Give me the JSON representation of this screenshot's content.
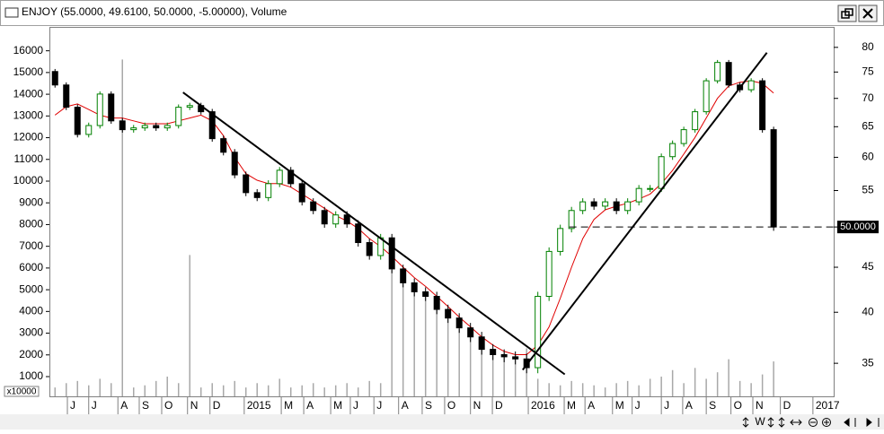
{
  "chart_data": {
    "type": "candlestick",
    "title": "ENJOY (55.0000, 49.6100, 50.0000, -5.00000), Volume",
    "x": [
      1,
      3,
      5,
      7,
      9,
      11,
      13,
      15,
      17,
      19,
      21,
      23,
      25,
      27,
      29,
      31,
      33,
      35,
      37,
      39,
      41,
      43,
      45,
      47,
      49,
      51,
      53,
      55,
      57,
      59,
      61,
      63,
      65,
      67,
      69,
      71,
      73,
      75,
      77,
      79,
      81,
      83,
      85,
      87,
      89,
      91,
      93,
      95,
      97,
      99,
      101,
      103,
      105,
      107,
      109,
      111,
      113,
      115,
      117,
      119,
      121,
      123,
      125,
      127,
      129
    ],
    "open": [
      75.1,
      72.5,
      68.4,
      63.7,
      65.2,
      70.8,
      66.0,
      64.5,
      64.8,
      65.2,
      64.8,
      65.2,
      68.4,
      68.7,
      67.6,
      63.0,
      60.8,
      57.3,
      54.7,
      54.0,
      56.0,
      58.0,
      56.0,
      53.4,
      52.2,
      50.4,
      51.6,
      50.4,
      48.0,
      46.4,
      48.6,
      44.8,
      43.2,
      42.2,
      41.7,
      40.3,
      39.4,
      38.4,
      37.5,
      36.3,
      35.8,
      35.6,
      35.4,
      34.6,
      41.7,
      46.9,
      49.8,
      52.2,
      53.4,
      52.8,
      53.4,
      52.2,
      53.4,
      55.3,
      55.3,
      60.1,
      62.2,
      64.5,
      67.6,
      73.3,
      76.9,
      72.5,
      71.6,
      73.3,
      64.5
    ],
    "high": [
      75.6,
      73.0,
      68.9,
      65.7,
      71.3,
      71.3,
      66.5,
      65.3,
      65.7,
      65.7,
      65.7,
      68.9,
      69.2,
      69.2,
      68.1,
      63.5,
      61.3,
      57.8,
      55.2,
      56.5,
      58.5,
      58.5,
      56.5,
      53.9,
      52.7,
      52.1,
      52.1,
      50.9,
      48.5,
      49.1,
      49.1,
      45.3,
      43.7,
      42.7,
      42.2,
      40.8,
      39.9,
      38.9,
      38.0,
      36.8,
      36.3,
      36.1,
      35.9,
      42.2,
      47.4,
      50.3,
      52.7,
      53.9,
      53.9,
      53.9,
      53.9,
      53.9,
      55.8,
      55.8,
      60.6,
      62.7,
      65.0,
      68.1,
      73.8,
      77.4,
      77.4,
      73.0,
      73.8,
      73.8,
      65.0
    ],
    "low": [
      72.0,
      67.9,
      63.2,
      63.2,
      64.7,
      65.5,
      64.0,
      64.0,
      64.3,
      64.3,
      64.3,
      64.7,
      67.9,
      67.1,
      62.5,
      60.3,
      56.8,
      54.2,
      53.5,
      53.5,
      55.5,
      55.5,
      52.9,
      51.7,
      49.9,
      49.9,
      49.9,
      47.5,
      45.9,
      45.9,
      44.3,
      42.7,
      41.7,
      41.2,
      39.8,
      38.9,
      37.9,
      37.0,
      35.8,
      35.3,
      35.1,
      34.9,
      34.1,
      34.1,
      41.2,
      46.4,
      49.3,
      51.7,
      52.3,
      52.3,
      51.7,
      51.7,
      52.9,
      54.8,
      54.8,
      59.6,
      61.7,
      64.0,
      67.1,
      72.8,
      72.0,
      71.1,
      71.1,
      64.0,
      49.5
    ],
    "close": [
      72.5,
      68.4,
      63.7,
      65.2,
      70.8,
      66.0,
      64.5,
      64.8,
      65.2,
      64.8,
      65.2,
      68.4,
      68.7,
      67.6,
      63.0,
      60.8,
      57.3,
      54.7,
      54.0,
      56.0,
      58.0,
      56.0,
      53.4,
      52.2,
      50.4,
      51.6,
      50.4,
      48.0,
      46.4,
      48.6,
      44.8,
      43.2,
      42.2,
      41.7,
      40.3,
      39.4,
      38.4,
      37.5,
      36.3,
      35.8,
      35.6,
      35.4,
      34.6,
      41.7,
      46.9,
      49.8,
      52.2,
      53.4,
      52.8,
      53.4,
      52.2,
      53.4,
      55.3,
      55.3,
      60.1,
      62.2,
      64.5,
      67.6,
      73.3,
      76.9,
      72.5,
      71.6,
      73.3,
      64.5,
      50.0
    ],
    "up_color": "#008000",
    "down_color": "#000000",
    "volume": [
      500,
      700,
      800,
      600,
      900,
      700,
      15600,
      500,
      600,
      800,
      1000,
      700,
      6600,
      500,
      700,
      600,
      800,
      500,
      700,
      600,
      900,
      500,
      600,
      700,
      500,
      600,
      700,
      500,
      800,
      700,
      5900,
      5800,
      5200,
      4900,
      4500,
      3800,
      3200,
      2900,
      2400,
      2200,
      2100,
      2000,
      2300,
      900,
      700,
      600,
      800,
      700,
      600,
      500,
      700,
      800,
      600,
      900,
      1000,
      1300,
      700,
      1400,
      900,
      1200,
      1800,
      800,
      700,
      1100,
      1700
    ],
    "volume_color": "#a8a8a8",
    "ma": [
      67,
      68.5,
      69,
      68,
      67,
      66.5,
      66.5,
      66,
      65.5,
      65.5,
      65.5,
      66,
      66.5,
      67,
      66,
      63.5,
      60,
      57.5,
      56.5,
      56,
      56,
      55.5,
      54.5,
      53.5,
      52.5,
      51.5,
      50.8,
      49.8,
      48.5,
      47.5,
      46.3,
      45,
      43.8,
      42.8,
      41.7,
      40.6,
      39.5,
      38.5,
      37.5,
      36.7,
      36.1,
      35.8,
      35.8,
      36.7,
      38.5,
      41.5,
      45,
      48.5,
      51,
      52.3,
      52.8,
      53.2,
      53.8,
      54.5,
      56,
      58,
      60.5,
      63.2,
      66.5,
      70,
      72.3,
      73,
      73.3,
      72.8,
      71
    ],
    "ma_color": "#e00000",
    "trendlines": [
      {
        "x": [
          23.8,
          91.8
        ],
        "y": [
          71.1,
          34.0
        ]
      },
      {
        "x": [
          84.3,
          127.8
        ],
        "y": [
          34.4,
          78.9
        ]
      }
    ],
    "last_price": {
      "value": 50,
      "label": "50.0000",
      "from_x": 92.6
    },
    "xlim": [
      0,
      139.7
    ],
    "xticks": [
      {
        "value": 3.2,
        "label": "J"
      },
      {
        "value": 7.0,
        "label": "J"
      },
      {
        "value": 12.2,
        "label": "A"
      },
      {
        "value": 16,
        "label": "S"
      },
      {
        "value": 20,
        "label": "O"
      },
      {
        "value": 24.6,
        "label": "N"
      },
      {
        "value": 28.6,
        "label": "D"
      },
      {
        "value": 34.7,
        "label": "2015"
      },
      {
        "value": 41.3,
        "label": "M"
      },
      {
        "value": 45.3,
        "label": "A"
      },
      {
        "value": 50.1,
        "label": "M"
      },
      {
        "value": 53.6,
        "label": "J"
      },
      {
        "value": 57.8,
        "label": "J"
      },
      {
        "value": 62.2,
        "label": "A"
      },
      {
        "value": 66.4,
        "label": "S"
      },
      {
        "value": 70.4,
        "label": "O"
      },
      {
        "value": 75,
        "label": "N"
      },
      {
        "value": 78.9,
        "label": "D"
      },
      {
        "value": 85.3,
        "label": "2016"
      },
      {
        "value": 91.7,
        "label": "M"
      },
      {
        "value": 95.4,
        "label": "A"
      },
      {
        "value": 100.3,
        "label": "M"
      },
      {
        "value": 103.8,
        "label": "J"
      },
      {
        "value": 109,
        "label": "J"
      },
      {
        "value": 112.8,
        "label": "A"
      },
      {
        "value": 117,
        "label": "S"
      },
      {
        "value": 121.4,
        "label": "O"
      },
      {
        "value": 125.3,
        "label": "N"
      },
      {
        "value": 130.2,
        "label": "D"
      },
      {
        "value": 136,
        "label": "2017"
      }
    ],
    "ylim": [
      92,
      17100
    ],
    "yticks": [
      1000,
      2000,
      3000,
      4000,
      5000,
      6000,
      7000,
      8000,
      9000,
      10000,
      11000,
      12000,
      13000,
      14000,
      15000,
      16000
    ],
    "y_unit": "x10000",
    "y2lim": [
      32.1,
      84.4
    ],
    "y2_log": true,
    "y2ticks": [
      35,
      40,
      45,
      50,
      55,
      60,
      65,
      70,
      75,
      80
    ]
  },
  "toolbar": {
    "period": "W"
  }
}
